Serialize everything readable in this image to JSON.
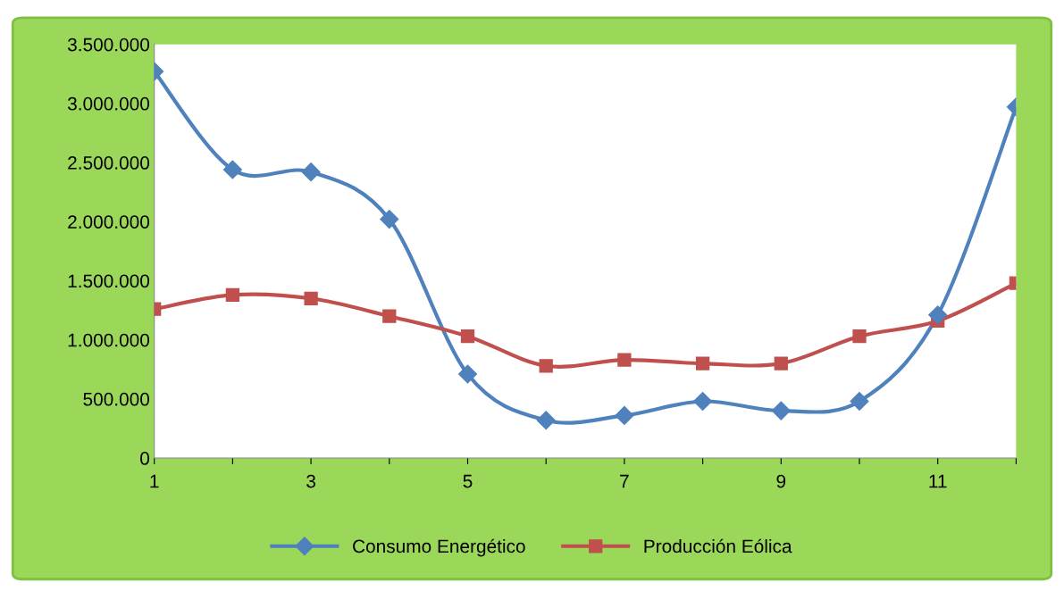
{
  "chart_data": {
    "type": "line",
    "categories": [
      "1",
      null,
      "3",
      null,
      "5",
      null,
      "7",
      null,
      "9",
      null,
      "11",
      null
    ],
    "series": [
      {
        "name": "Consumo Energético",
        "color": "#4f81bd",
        "marker": "diamond",
        "values": [
          3270000,
          2440000,
          2420000,
          2020000,
          710000,
          320000,
          360000,
          480000,
          400000,
          480000,
          1210000,
          2970000
        ]
      },
      {
        "name": "Producción Eólica",
        "color": "#c0504d",
        "marker": "square",
        "values": [
          1260000,
          1380000,
          1350000,
          1200000,
          1030000,
          780000,
          830000,
          800000,
          800000,
          1030000,
          1160000,
          1480000
        ]
      }
    ],
    "ylim": [
      0,
      3500000
    ],
    "yticks": [
      0,
      {
        "value": 500000,
        "label": "500.000"
      },
      {
        "value": 1000000,
        "label": "1.000.000"
      },
      {
        "value": 1500000,
        "label": "1.500.000"
      },
      {
        "value": 2000000,
        "label": "2.000.000"
      },
      {
        "value": 2500000,
        "label": "2.500.000"
      },
      {
        "value": 3000000,
        "label": "3.000.000"
      },
      {
        "value": 3500000,
        "label": "3.500.000"
      }
    ],
    "grid": false,
    "legend": "bottom",
    "line_style": "solid"
  }
}
